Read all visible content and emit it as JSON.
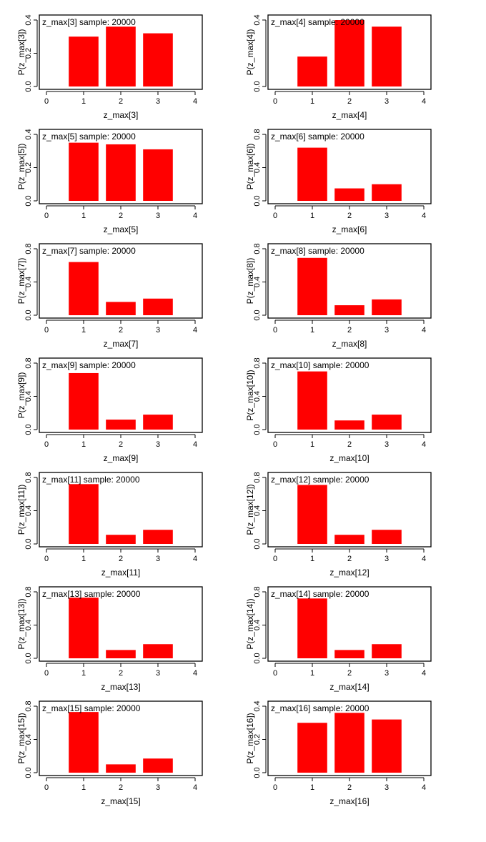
{
  "chart_data": [
    {
      "type": "bar",
      "title": "z_max[3] sample: 20000",
      "xlabel": "z_max[3]",
      "ylabel": "P(z_max[3])",
      "categories": [
        1,
        2,
        3
      ],
      "values": [
        0.3,
        0.36,
        0.32
      ],
      "xlim": [
        0,
        4
      ],
      "ylim": [
        0,
        0.4
      ],
      "yticks": [
        "0.0",
        "0.2",
        "0.4"
      ],
      "xticks": [
        "0",
        "1",
        "2",
        "3",
        "4"
      ],
      "color": "#ff0000"
    },
    {
      "type": "bar",
      "title": "z_max[4] sample: 20000",
      "xlabel": "z_max[4]",
      "ylabel": "P(z_max[4])",
      "categories": [
        1,
        2,
        3
      ],
      "values": [
        0.18,
        0.4,
        0.36
      ],
      "xlim": [
        0,
        4
      ],
      "ylim": [
        0,
        0.4
      ],
      "yticks": [
        "0.0",
        "0.4"
      ],
      "xticks": [
        "0",
        "1",
        "2",
        "3",
        "4"
      ],
      "color": "#ff0000"
    },
    {
      "type": "bar",
      "title": "z_max[5] sample: 20000",
      "xlabel": "z_max[5]",
      "ylabel": "P(z_max[5])",
      "categories": [
        1,
        2,
        3
      ],
      "values": [
        0.35,
        0.34,
        0.31
      ],
      "xlim": [
        0,
        4
      ],
      "ylim": [
        0,
        0.4
      ],
      "yticks": [
        "0.0",
        "0.2",
        "0.4"
      ],
      "xticks": [
        "0",
        "1",
        "2",
        "3",
        "4"
      ],
      "color": "#ff0000"
    },
    {
      "type": "bar",
      "title": "z_max[6] sample: 20000",
      "xlabel": "z_max[6]",
      "ylabel": "P(z_max[6])",
      "categories": [
        1,
        2,
        3
      ],
      "values": [
        0.64,
        0.15,
        0.2
      ],
      "xlim": [
        0,
        4
      ],
      "ylim": [
        0,
        0.8
      ],
      "yticks": [
        "0.0",
        "0.4",
        "0.8"
      ],
      "xticks": [
        "0",
        "1",
        "2",
        "3",
        "4"
      ],
      "color": "#ff0000"
    },
    {
      "type": "bar",
      "title": "z_max[7] sample: 20000",
      "xlabel": "z_max[7]",
      "ylabel": "P(z_max[7])",
      "categories": [
        1,
        2,
        3
      ],
      "values": [
        0.64,
        0.16,
        0.2
      ],
      "xlim": [
        0,
        4
      ],
      "ylim": [
        0,
        0.8
      ],
      "yticks": [
        "0.0",
        "0.4",
        "0.8"
      ],
      "xticks": [
        "0",
        "1",
        "2",
        "3",
        "4"
      ],
      "color": "#ff0000"
    },
    {
      "type": "bar",
      "title": "z_max[8] sample: 20000",
      "xlabel": "z_max[8]",
      "ylabel": "P(z_max[8])",
      "categories": [
        1,
        2,
        3
      ],
      "values": [
        0.69,
        0.12,
        0.19
      ],
      "xlim": [
        0,
        4
      ],
      "ylim": [
        0,
        0.8
      ],
      "yticks": [
        "0.0",
        "0.4",
        "0.8"
      ],
      "xticks": [
        "0",
        "1",
        "2",
        "3",
        "4"
      ],
      "color": "#ff0000"
    },
    {
      "type": "bar",
      "title": "z_max[9] sample: 20000",
      "xlabel": "z_max[9]",
      "ylabel": "P(z_max[9])",
      "categories": [
        1,
        2,
        3
      ],
      "values": [
        0.68,
        0.12,
        0.18
      ],
      "xlim": [
        0,
        4
      ],
      "ylim": [
        0,
        0.8
      ],
      "yticks": [
        "0.0",
        "0.4",
        "0.8"
      ],
      "xticks": [
        "0",
        "1",
        "2",
        "3",
        "4"
      ],
      "color": "#ff0000"
    },
    {
      "type": "bar",
      "title": "z_max[10] sample: 20000",
      "xlabel": "z_max[10]",
      "ylabel": "P(z_max[10])",
      "categories": [
        1,
        2,
        3
      ],
      "values": [
        0.7,
        0.11,
        0.18
      ],
      "xlim": [
        0,
        4
      ],
      "ylim": [
        0,
        0.8
      ],
      "yticks": [
        "0.0",
        "0.4",
        "0.8"
      ],
      "xticks": [
        "0",
        "1",
        "2",
        "3",
        "4"
      ],
      "color": "#ff0000"
    },
    {
      "type": "bar",
      "title": "z_max[11] sample: 20000",
      "xlabel": "z_max[11]",
      "ylabel": "P(z_max[11])",
      "categories": [
        1,
        2,
        3
      ],
      "values": [
        0.72,
        0.11,
        0.17
      ],
      "xlim": [
        0,
        4
      ],
      "ylim": [
        0,
        0.8
      ],
      "yticks": [
        "0.0",
        "0.4",
        "0.8"
      ],
      "xticks": [
        "0",
        "1",
        "2",
        "3",
        "4"
      ],
      "color": "#ff0000"
    },
    {
      "type": "bar",
      "title": "z_max[12] sample: 20000",
      "xlabel": "z_max[12]",
      "ylabel": "P(z_max[12])",
      "categories": [
        1,
        2,
        3
      ],
      "values": [
        0.71,
        0.11,
        0.17
      ],
      "xlim": [
        0,
        4
      ],
      "ylim": [
        0,
        0.8
      ],
      "yticks": [
        "0.0",
        "0.4",
        "0.8"
      ],
      "xticks": [
        "0",
        "1",
        "2",
        "3",
        "4"
      ],
      "color": "#ff0000"
    },
    {
      "type": "bar",
      "title": "z_max[13] sample: 20000",
      "xlabel": "z_max[13]",
      "ylabel": "P(z_max[13])",
      "categories": [
        1,
        2,
        3
      ],
      "values": [
        0.73,
        0.1,
        0.17
      ],
      "xlim": [
        0,
        4
      ],
      "ylim": [
        0,
        0.8
      ],
      "yticks": [
        "0.0",
        "0.4",
        "0.8"
      ],
      "xticks": [
        "0",
        "1",
        "2",
        "3",
        "4"
      ],
      "color": "#ff0000"
    },
    {
      "type": "bar",
      "title": "z_max[14] sample: 20000",
      "xlabel": "z_max[14]",
      "ylabel": "P(z_max[14])",
      "categories": [
        1,
        2,
        3
      ],
      "values": [
        0.72,
        0.1,
        0.17
      ],
      "xlim": [
        0,
        4
      ],
      "ylim": [
        0,
        0.8
      ],
      "yticks": [
        "0.0",
        "0.4",
        "0.8"
      ],
      "xticks": [
        "0",
        "1",
        "2",
        "3",
        "4"
      ],
      "color": "#ff0000"
    },
    {
      "type": "bar",
      "title": "z_max[15] sample: 20000",
      "xlabel": "z_max[15]",
      "ylabel": "P(z_max[15])",
      "categories": [
        1,
        2,
        3
      ],
      "values": [
        0.73,
        0.1,
        0.17
      ],
      "xlim": [
        0,
        4
      ],
      "ylim": [
        0,
        0.8
      ],
      "yticks": [
        "0.0",
        "0.4",
        "0.8"
      ],
      "xticks": [
        "0",
        "1",
        "2",
        "3",
        "4"
      ],
      "color": "#ff0000"
    },
    {
      "type": "bar",
      "title": "z_max[16] sample: 20000",
      "xlabel": "z_max[16]",
      "ylabel": "P(z_max[16])",
      "categories": [
        1,
        2,
        3
      ],
      "values": [
        0.3,
        0.36,
        0.32
      ],
      "xlim": [
        0,
        4
      ],
      "ylim": [
        0,
        0.4
      ],
      "yticks": [
        "0.0",
        "0.2",
        "0.4"
      ],
      "xticks": [
        "0",
        "1",
        "2",
        "3",
        "4"
      ],
      "color": "#ff0000"
    }
  ]
}
